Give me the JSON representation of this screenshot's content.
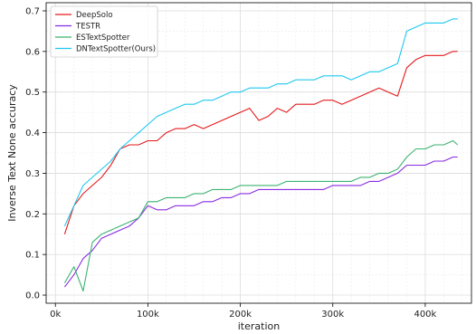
{
  "chart_data": {
    "type": "line",
    "title": "",
    "xlabel": "iteration",
    "ylabel": "Inverse Text None accuracy",
    "xlim": [
      -10000,
      450000
    ],
    "ylim": [
      -0.02,
      0.72
    ],
    "x_ticks": [
      0,
      100000,
      200000,
      300000,
      400000
    ],
    "x_tick_labels": [
      "0k",
      "100k",
      "200k",
      "300k",
      "400k"
    ],
    "y_ticks": [
      0.0,
      0.1,
      0.2,
      0.3,
      0.4,
      0.5,
      0.6,
      0.7
    ],
    "y_tick_labels": [
      "0.0",
      "0.1",
      "0.2",
      "0.3",
      "0.4",
      "0.5",
      "0.6",
      "0.7"
    ],
    "grid": true,
    "legend_position": "top-left",
    "x": [
      10000,
      20000,
      30000,
      40000,
      50000,
      60000,
      70000,
      80000,
      90000,
      100000,
      110000,
      120000,
      130000,
      140000,
      150000,
      160000,
      170000,
      180000,
      190000,
      200000,
      210000,
      220000,
      230000,
      240000,
      250000,
      260000,
      270000,
      280000,
      290000,
      300000,
      310000,
      320000,
      330000,
      340000,
      350000,
      360000,
      370000,
      380000,
      390000,
      400000,
      410000,
      420000,
      430000,
      435000
    ],
    "series": [
      {
        "name": "DeepSolo",
        "color": "#e41a1c",
        "values": [
          0.15,
          0.22,
          0.25,
          0.27,
          0.29,
          0.32,
          0.36,
          0.37,
          0.37,
          0.38,
          0.38,
          0.4,
          0.41,
          0.41,
          0.42,
          0.41,
          0.42,
          0.43,
          0.44,
          0.45,
          0.46,
          0.43,
          0.44,
          0.46,
          0.45,
          0.47,
          0.47,
          0.47,
          0.48,
          0.48,
          0.47,
          0.48,
          0.49,
          0.5,
          0.51,
          0.5,
          0.49,
          0.56,
          0.58,
          0.59,
          0.59,
          0.59,
          0.6,
          0.6
        ]
      },
      {
        "name": "TESTR",
        "color": "#8a2be2",
        "values": [
          0.02,
          0.05,
          0.09,
          0.11,
          0.14,
          0.15,
          0.16,
          0.17,
          0.19,
          0.22,
          0.21,
          0.21,
          0.22,
          0.22,
          0.22,
          0.23,
          0.23,
          0.24,
          0.24,
          0.25,
          0.25,
          0.26,
          0.26,
          0.26,
          0.26,
          0.26,
          0.26,
          0.26,
          0.26,
          0.27,
          0.27,
          0.27,
          0.27,
          0.28,
          0.28,
          0.29,
          0.3,
          0.32,
          0.32,
          0.32,
          0.33,
          0.33,
          0.34,
          0.34
        ]
      },
      {
        "name": "ESTextSpotter",
        "color": "#3cb371",
        "values": [
          0.03,
          0.07,
          0.01,
          0.13,
          0.15,
          0.16,
          0.17,
          0.18,
          0.19,
          0.23,
          0.23,
          0.24,
          0.24,
          0.24,
          0.25,
          0.25,
          0.26,
          0.26,
          0.26,
          0.27,
          0.27,
          0.27,
          0.27,
          0.27,
          0.28,
          0.28,
          0.28,
          0.28,
          0.28,
          0.28,
          0.28,
          0.28,
          0.29,
          0.29,
          0.3,
          0.3,
          0.31,
          0.34,
          0.36,
          0.36,
          0.37,
          0.37,
          0.38,
          0.37
        ]
      },
      {
        "name": "DNTextSpotter(Ours)",
        "color": "#1ec8f0",
        "values": [
          0.17,
          0.22,
          0.27,
          0.29,
          0.31,
          0.33,
          0.36,
          0.38,
          0.4,
          0.42,
          0.44,
          0.45,
          0.46,
          0.47,
          0.47,
          0.48,
          0.48,
          0.49,
          0.5,
          0.5,
          0.51,
          0.51,
          0.51,
          0.52,
          0.52,
          0.53,
          0.53,
          0.53,
          0.54,
          0.54,
          0.54,
          0.53,
          0.54,
          0.55,
          0.55,
          0.56,
          0.57,
          0.65,
          0.66,
          0.67,
          0.67,
          0.67,
          0.68,
          0.68
        ]
      }
    ]
  }
}
